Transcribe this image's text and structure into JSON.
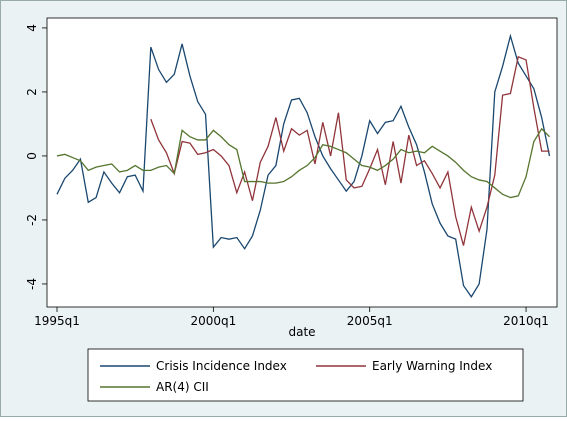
{
  "chart_data": {
    "type": "line",
    "x_label": "date",
    "x": [
      "1995q1",
      "1995q2",
      "1995q3",
      "1995q4",
      "1996q1",
      "1996q2",
      "1996q3",
      "1996q4",
      "1997q1",
      "1997q2",
      "1997q3",
      "1997q4",
      "1998q1",
      "1998q2",
      "1998q3",
      "1998q4",
      "1999q1",
      "1999q2",
      "1999q3",
      "1999q4",
      "2000q1",
      "2000q2",
      "2000q3",
      "2000q4",
      "2001q1",
      "2001q2",
      "2001q3",
      "2001q4",
      "2002q1",
      "2002q2",
      "2002q3",
      "2002q4",
      "2003q1",
      "2003q2",
      "2003q3",
      "2003q4",
      "2004q1",
      "2004q2",
      "2004q3",
      "2004q4",
      "2005q1",
      "2005q2",
      "2005q3",
      "2005q4",
      "2006q1",
      "2006q2",
      "2006q3",
      "2006q4",
      "2007q1",
      "2007q2",
      "2007q3",
      "2007q4",
      "2008q1",
      "2008q2",
      "2008q3",
      "2008q4",
      "2009q1",
      "2009q2",
      "2009q3",
      "2009q4",
      "2010q1",
      "2010q2",
      "2010q3",
      "2010q4"
    ],
    "xticks": [
      "1995q1",
      "2000q1",
      "2005q1",
      "2010q1"
    ],
    "ylim": [
      -4.72,
      4.31
    ],
    "yticks": [
      -4,
      -2,
      0,
      2,
      4
    ],
    "series": [
      {
        "name": "Crisis Incidence Index",
        "color": "#1a476f",
        "values": [
          -1.2,
          -0.7,
          -0.45,
          -0.1,
          -1.45,
          -1.3,
          -0.5,
          -0.85,
          -1.15,
          -0.65,
          -0.6,
          -1.1,
          3.4,
          2.7,
          2.3,
          2.55,
          3.5,
          2.5,
          1.7,
          1.3,
          -2.85,
          -2.55,
          -2.6,
          -2.55,
          -2.9,
          -2.5,
          -1.7,
          -0.6,
          -0.3,
          1.0,
          1.75,
          1.8,
          1.35,
          0.6,
          0.0,
          -0.4,
          -0.75,
          -1.1,
          -0.8,
          0.0,
          1.1,
          0.7,
          1.05,
          1.1,
          1.55,
          0.9,
          0.35,
          -0.5,
          -1.5,
          -2.1,
          -2.5,
          -2.6,
          -4.05,
          -4.4,
          -4.0,
          -2.3,
          2.0,
          2.8,
          3.75,
          2.9,
          2.5,
          2.1,
          1.2,
          0.0
        ]
      },
      {
        "name": "Early Warning Index",
        "color": "#90353b",
        "values": [
          null,
          null,
          null,
          null,
          null,
          null,
          null,
          null,
          null,
          null,
          null,
          null,
          1.15,
          0.5,
          0.1,
          -0.55,
          0.45,
          0.4,
          0.05,
          0.1,
          0.2,
          0.0,
          -0.3,
          -1.15,
          -0.5,
          -1.4,
          -0.2,
          0.3,
          1.2,
          0.15,
          0.85,
          0.65,
          0.8,
          -0.25,
          1.05,
          0.0,
          1.35,
          -0.75,
          -1.0,
          -0.95,
          -0.4,
          0.2,
          -0.9,
          0.45,
          -0.85,
          0.65,
          -0.3,
          -0.15,
          -0.55,
          -1.0,
          -0.5,
          -1.9,
          -2.8,
          -1.6,
          -2.35,
          -1.6,
          -0.6,
          1.9,
          1.95,
          3.1,
          3.0,
          1.5,
          0.15,
          0.15
        ]
      },
      {
        "name": "AR(4) CII",
        "color": "#55752f",
        "values": [
          0.0,
          0.05,
          -0.05,
          -0.15,
          -0.45,
          -0.35,
          -0.3,
          -0.25,
          -0.5,
          -0.45,
          -0.3,
          -0.45,
          -0.45,
          -0.35,
          -0.3,
          -0.55,
          0.8,
          0.6,
          0.5,
          0.5,
          0.8,
          0.6,
          0.35,
          0.2,
          -0.8,
          -0.8,
          -0.8,
          -0.85,
          -0.85,
          -0.8,
          -0.65,
          -0.45,
          -0.3,
          -0.05,
          0.35,
          0.3,
          0.2,
          0.1,
          -0.1,
          -0.3,
          -0.35,
          -0.45,
          -0.3,
          -0.1,
          0.2,
          0.1,
          0.15,
          0.1,
          0.3,
          0.15,
          0.0,
          -0.2,
          -0.45,
          -0.65,
          -0.75,
          -0.8,
          -1.0,
          -1.2,
          -1.3,
          -1.25,
          -0.65,
          0.45,
          0.85,
          0.6
        ]
      }
    ]
  }
}
